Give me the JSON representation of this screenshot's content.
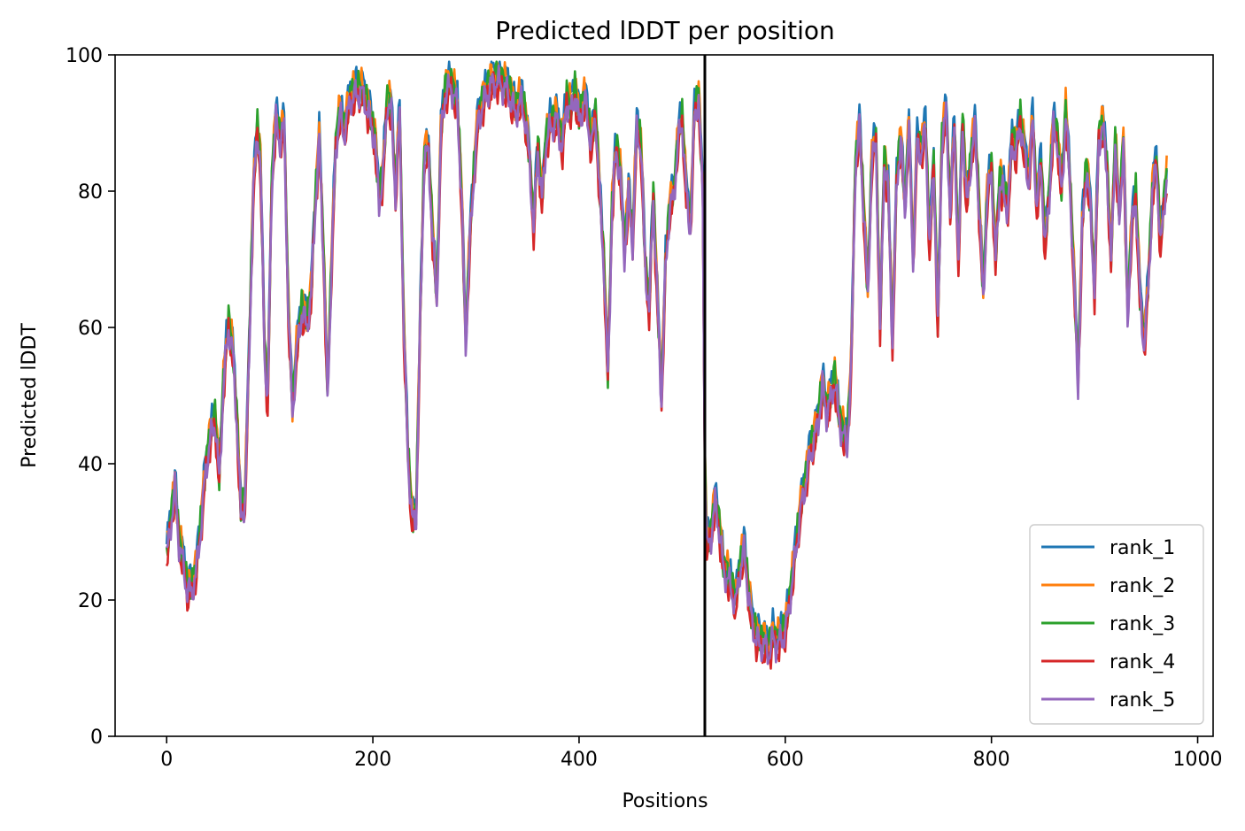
{
  "chart_data": {
    "type": "line",
    "title": "Predicted lDDT per position",
    "xlabel": "Positions",
    "ylabel": "Predicted lDDT",
    "xlim": [
      -50,
      1015
    ],
    "ylim": [
      0,
      100
    ],
    "xticks": [
      0,
      200,
      400,
      600,
      800,
      1000
    ],
    "yticks": [
      0,
      20,
      40,
      60,
      80,
      100
    ],
    "chain_break": 522,
    "legend_position": "lower right",
    "grid": false,
    "series": [
      {
        "name": "rank_1",
        "color": "#1f77b4",
        "offset": 1.2
      },
      {
        "name": "rank_2",
        "color": "#ff7f0e",
        "offset": 0.8
      },
      {
        "name": "rank_3",
        "color": "#2ca02c",
        "offset": 0.2
      },
      {
        "name": "rank_4",
        "color": "#d62728",
        "offset": -1.5
      },
      {
        "name": "rank_5",
        "color": "#9467bd",
        "offset": -0.8
      }
    ],
    "profile": [
      [
        0,
        27
      ],
      [
        5,
        33
      ],
      [
        8,
        37
      ],
      [
        12,
        29
      ],
      [
        16,
        26
      ],
      [
        20,
        22
      ],
      [
        24,
        22
      ],
      [
        28,
        24
      ],
      [
        33,
        31
      ],
      [
        38,
        40
      ],
      [
        43,
        45
      ],
      [
        47,
        47
      ],
      [
        51,
        38
      ],
      [
        55,
        52
      ],
      [
        60,
        61
      ],
      [
        64,
        57
      ],
      [
        68,
        47
      ],
      [
        72,
        33
      ],
      [
        76,
        35
      ],
      [
        80,
        57
      ],
      [
        84,
        80
      ],
      [
        88,
        90
      ],
      [
        91,
        84
      ],
      [
        95,
        57
      ],
      [
        98,
        49
      ],
      [
        102,
        82
      ],
      [
        106,
        91
      ],
      [
        110,
        88
      ],
      [
        114,
        90
      ],
      [
        118,
        63
      ],
      [
        122,
        48
      ],
      [
        126,
        57
      ],
      [
        131,
        63
      ],
      [
        136,
        61
      ],
      [
        140,
        65
      ],
      [
        144,
        78
      ],
      [
        148,
        88
      ],
      [
        152,
        72
      ],
      [
        156,
        50
      ],
      [
        160,
        70
      ],
      [
        164,
        87
      ],
      [
        168,
        92
      ],
      [
        172,
        89
      ],
      [
        178,
        94
      ],
      [
        184,
        95
      ],
      [
        190,
        95
      ],
      [
        196,
        92
      ],
      [
        202,
        88
      ],
      [
        206,
        79
      ],
      [
        210,
        83
      ],
      [
        214,
        94
      ],
      [
        218,
        92
      ],
      [
        222,
        80
      ],
      [
        226,
        92
      ],
      [
        230,
        60
      ],
      [
        234,
        42
      ],
      [
        238,
        32
      ],
      [
        242,
        33
      ],
      [
        246,
        62
      ],
      [
        250,
        86
      ],
      [
        254,
        86
      ],
      [
        258,
        74
      ],
      [
        262,
        64
      ],
      [
        266,
        89
      ],
      [
        270,
        95
      ],
      [
        276,
        96
      ],
      [
        282,
        93
      ],
      [
        286,
        80
      ],
      [
        290,
        58
      ],
      [
        294,
        73
      ],
      [
        298,
        83
      ],
      [
        302,
        91
      ],
      [
        308,
        94
      ],
      [
        314,
        96
      ],
      [
        320,
        97
      ],
      [
        326,
        96
      ],
      [
        332,
        95
      ],
      [
        338,
        92
      ],
      [
        344,
        94
      ],
      [
        348,
        91
      ],
      [
        352,
        85
      ],
      [
        356,
        75
      ],
      [
        360,
        87
      ],
      [
        364,
        79
      ],
      [
        368,
        88
      ],
      [
        372,
        90
      ],
      [
        378,
        91
      ],
      [
        384,
        87
      ],
      [
        388,
        94
      ],
      [
        392,
        92
      ],
      [
        396,
        95
      ],
      [
        400,
        91
      ],
      [
        406,
        94
      ],
      [
        412,
        87
      ],
      [
        416,
        92
      ],
      [
        420,
        80
      ],
      [
        424,
        70
      ],
      [
        428,
        53
      ],
      [
        432,
        78
      ],
      [
        436,
        87
      ],
      [
        440,
        83
      ],
      [
        444,
        71
      ],
      [
        448,
        80
      ],
      [
        452,
        73
      ],
      [
        456,
        90
      ],
      [
        460,
        87
      ],
      [
        464,
        70
      ],
      [
        468,
        63
      ],
      [
        472,
        80
      ],
      [
        476,
        64
      ],
      [
        480,
        50
      ],
      [
        484,
        70
      ],
      [
        488,
        78
      ],
      [
        492,
        80
      ],
      [
        496,
        88
      ],
      [
        500,
        91
      ],
      [
        504,
        80
      ],
      [
        508,
        75
      ],
      [
        512,
        92
      ],
      [
        516,
        94
      ],
      [
        520,
        80
      ],
      [
        522,
        40
      ],
      [
        524,
        28
      ],
      [
        528,
        30
      ],
      [
        532,
        35
      ],
      [
        536,
        31
      ],
      [
        540,
        25
      ],
      [
        544,
        24
      ],
      [
        548,
        22
      ],
      [
        552,
        20
      ],
      [
        556,
        25
      ],
      [
        560,
        28
      ],
      [
        564,
        22
      ],
      [
        568,
        17
      ],
      [
        572,
        15
      ],
      [
        576,
        14
      ],
      [
        580,
        14
      ],
      [
        584,
        13
      ],
      [
        588,
        15
      ],
      [
        592,
        14
      ],
      [
        596,
        15
      ],
      [
        600,
        16
      ],
      [
        604,
        20
      ],
      [
        608,
        25
      ],
      [
        612,
        30
      ],
      [
        616,
        35
      ],
      [
        620,
        38
      ],
      [
        624,
        42
      ],
      [
        628,
        44
      ],
      [
        632,
        47
      ],
      [
        636,
        52
      ],
      [
        640,
        48
      ],
      [
        644,
        50
      ],
      [
        648,
        53
      ],
      [
        652,
        47
      ],
      [
        656,
        45
      ],
      [
        660,
        43
      ],
      [
        664,
        55
      ],
      [
        668,
        84
      ],
      [
        672,
        90
      ],
      [
        676,
        78
      ],
      [
        680,
        65
      ],
      [
        684,
        85
      ],
      [
        688,
        88
      ],
      [
        692,
        60
      ],
      [
        696,
        85
      ],
      [
        700,
        80
      ],
      [
        704,
        58
      ],
      [
        708,
        82
      ],
      [
        712,
        88
      ],
      [
        716,
        78
      ],
      [
        720,
        90
      ],
      [
        724,
        70
      ],
      [
        728,
        88
      ],
      [
        732,
        86
      ],
      [
        736,
        90
      ],
      [
        740,
        72
      ],
      [
        744,
        85
      ],
      [
        748,
        60
      ],
      [
        752,
        88
      ],
      [
        756,
        92
      ],
      [
        760,
        78
      ],
      [
        764,
        90
      ],
      [
        768,
        70
      ],
      [
        772,
        91
      ],
      [
        776,
        78
      ],
      [
        780,
        85
      ],
      [
        784,
        90
      ],
      [
        788,
        78
      ],
      [
        792,
        65
      ],
      [
        796,
        80
      ],
      [
        800,
        84
      ],
      [
        804,
        70
      ],
      [
        808,
        82
      ],
      [
        812,
        80
      ],
      [
        816,
        78
      ],
      [
        820,
        88
      ],
      [
        824,
        86
      ],
      [
        828,
        91
      ],
      [
        832,
        86
      ],
      [
        836,
        82
      ],
      [
        840,
        91
      ],
      [
        844,
        78
      ],
      [
        848,
        85
      ],
      [
        852,
        72
      ],
      [
        856,
        80
      ],
      [
        860,
        90
      ],
      [
        864,
        88
      ],
      [
        868,
        80
      ],
      [
        872,
        92
      ],
      [
        876,
        82
      ],
      [
        880,
        68
      ],
      [
        884,
        52
      ],
      [
        888,
        75
      ],
      [
        892,
        84
      ],
      [
        896,
        78
      ],
      [
        900,
        66
      ],
      [
        904,
        88
      ],
      [
        908,
        90
      ],
      [
        912,
        84
      ],
      [
        916,
        70
      ],
      [
        920,
        88
      ],
      [
        924,
        76
      ],
      [
        928,
        88
      ],
      [
        932,
        62
      ],
      [
        936,
        75
      ],
      [
        940,
        80
      ],
      [
        944,
        65
      ],
      [
        948,
        58
      ],
      [
        952,
        66
      ],
      [
        956,
        80
      ],
      [
        960,
        85
      ],
      [
        964,
        72
      ],
      [
        968,
        80
      ],
      [
        970,
        82
      ]
    ]
  }
}
